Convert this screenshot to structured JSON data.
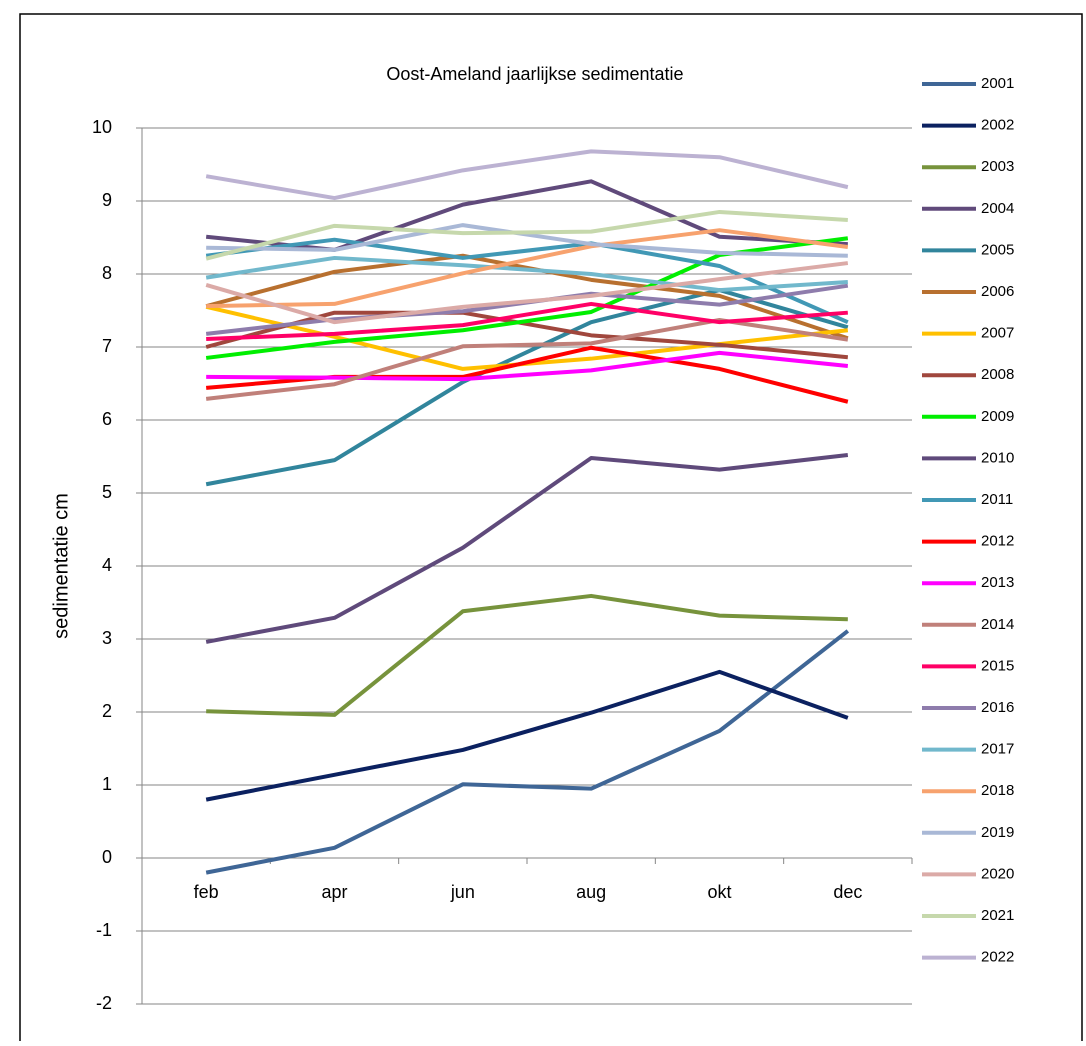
{
  "chart_data": {
    "type": "line",
    "title": "Oost-Ameland jaarlijkse sedimentatie",
    "y_label": "sedimentatie cm",
    "categories": [
      "feb",
      "apr",
      "jun",
      "aug",
      "okt",
      "dec"
    ],
    "ylim": [
      -2,
      10
    ],
    "yticks": [
      -2,
      -1,
      0,
      1,
      2,
      3,
      4,
      5,
      6,
      7,
      8,
      9,
      10
    ],
    "grid": true,
    "legend": "right",
    "series": [
      {
        "name": "2001",
        "color": "#3f6696",
        "values": [
          -0.2,
          0.14,
          1.01,
          0.95,
          1.74,
          3.11
        ]
      },
      {
        "name": "2002",
        "color": "#0b2160",
        "values": [
          0.8,
          1.14,
          1.48,
          1.99,
          2.55,
          1.92
        ]
      },
      {
        "name": "2003",
        "color": "#77933c",
        "values": [
          2.01,
          1.96,
          3.38,
          3.59,
          3.32,
          3.27
        ]
      },
      {
        "name": "2004",
        "color": "#604a7b",
        "values": [
          8.51,
          8.33,
          8.95,
          9.27,
          8.51,
          8.41
        ]
      },
      {
        "name": "2005",
        "color": "#31859c",
        "values": [
          5.12,
          5.45,
          6.52,
          7.34,
          7.78,
          7.27
        ]
      },
      {
        "name": "2006",
        "color": "#b8702f",
        "values": [
          7.56,
          8.03,
          8.25,
          7.92,
          7.7,
          7.12
        ]
      },
      {
        "name": "2007",
        "color": "#ffc000",
        "values": [
          7.55,
          7.14,
          6.7,
          6.84,
          7.04,
          7.23
        ]
      },
      {
        "name": "2008",
        "color": "#a0473d",
        "values": [
          7.0,
          7.47,
          7.47,
          7.16,
          7.03,
          6.86
        ]
      },
      {
        "name": "2009",
        "color": "#00ee00",
        "values": [
          6.85,
          7.07,
          7.23,
          7.48,
          8.26,
          8.49
        ]
      },
      {
        "name": "2010",
        "color": "#5f4a7b",
        "values": [
          2.96,
          3.29,
          4.25,
          5.48,
          5.32,
          5.52
        ]
      },
      {
        "name": "2011",
        "color": "#4198b5",
        "values": [
          8.25,
          8.47,
          8.22,
          8.42,
          8.11,
          7.34
        ]
      },
      {
        "name": "2012",
        "color": "#ff0000",
        "values": [
          6.44,
          6.59,
          6.59,
          6.99,
          6.7,
          6.25
        ]
      },
      {
        "name": "2013",
        "color": "#ff00ff",
        "values": [
          6.59,
          6.58,
          6.56,
          6.68,
          6.92,
          6.74
        ]
      },
      {
        "name": "2014",
        "color": "#c0807a",
        "values": [
          6.29,
          6.49,
          7.01,
          7.05,
          7.37,
          7.1
        ]
      },
      {
        "name": "2015",
        "color": "#ff0066",
        "values": [
          7.11,
          7.18,
          7.3,
          7.59,
          7.34,
          7.47
        ]
      },
      {
        "name": "2016",
        "color": "#8e7cac",
        "values": [
          7.18,
          7.38,
          7.49,
          7.73,
          7.58,
          7.84
        ]
      },
      {
        "name": "2017",
        "color": "#71b8cc",
        "values": [
          7.95,
          8.22,
          8.12,
          8.0,
          7.78,
          7.89
        ]
      },
      {
        "name": "2018",
        "color": "#f7a26e",
        "values": [
          7.56,
          7.59,
          8.01,
          8.38,
          8.6,
          8.37
        ]
      },
      {
        "name": "2019",
        "color": "#a9b8d6",
        "values": [
          8.36,
          8.33,
          8.67,
          8.41,
          8.29,
          8.25
        ]
      },
      {
        "name": "2020",
        "color": "#dbaaa7",
        "values": [
          7.85,
          7.34,
          7.55,
          7.7,
          7.93,
          8.15
        ]
      },
      {
        "name": "2021",
        "color": "#c6d8ac",
        "values": [
          8.21,
          8.66,
          8.56,
          8.58,
          8.85,
          8.74
        ]
      },
      {
        "name": "2022",
        "color": "#bcb2d2",
        "values": [
          9.34,
          9.04,
          9.42,
          9.68,
          9.6,
          9.19
        ]
      }
    ]
  }
}
